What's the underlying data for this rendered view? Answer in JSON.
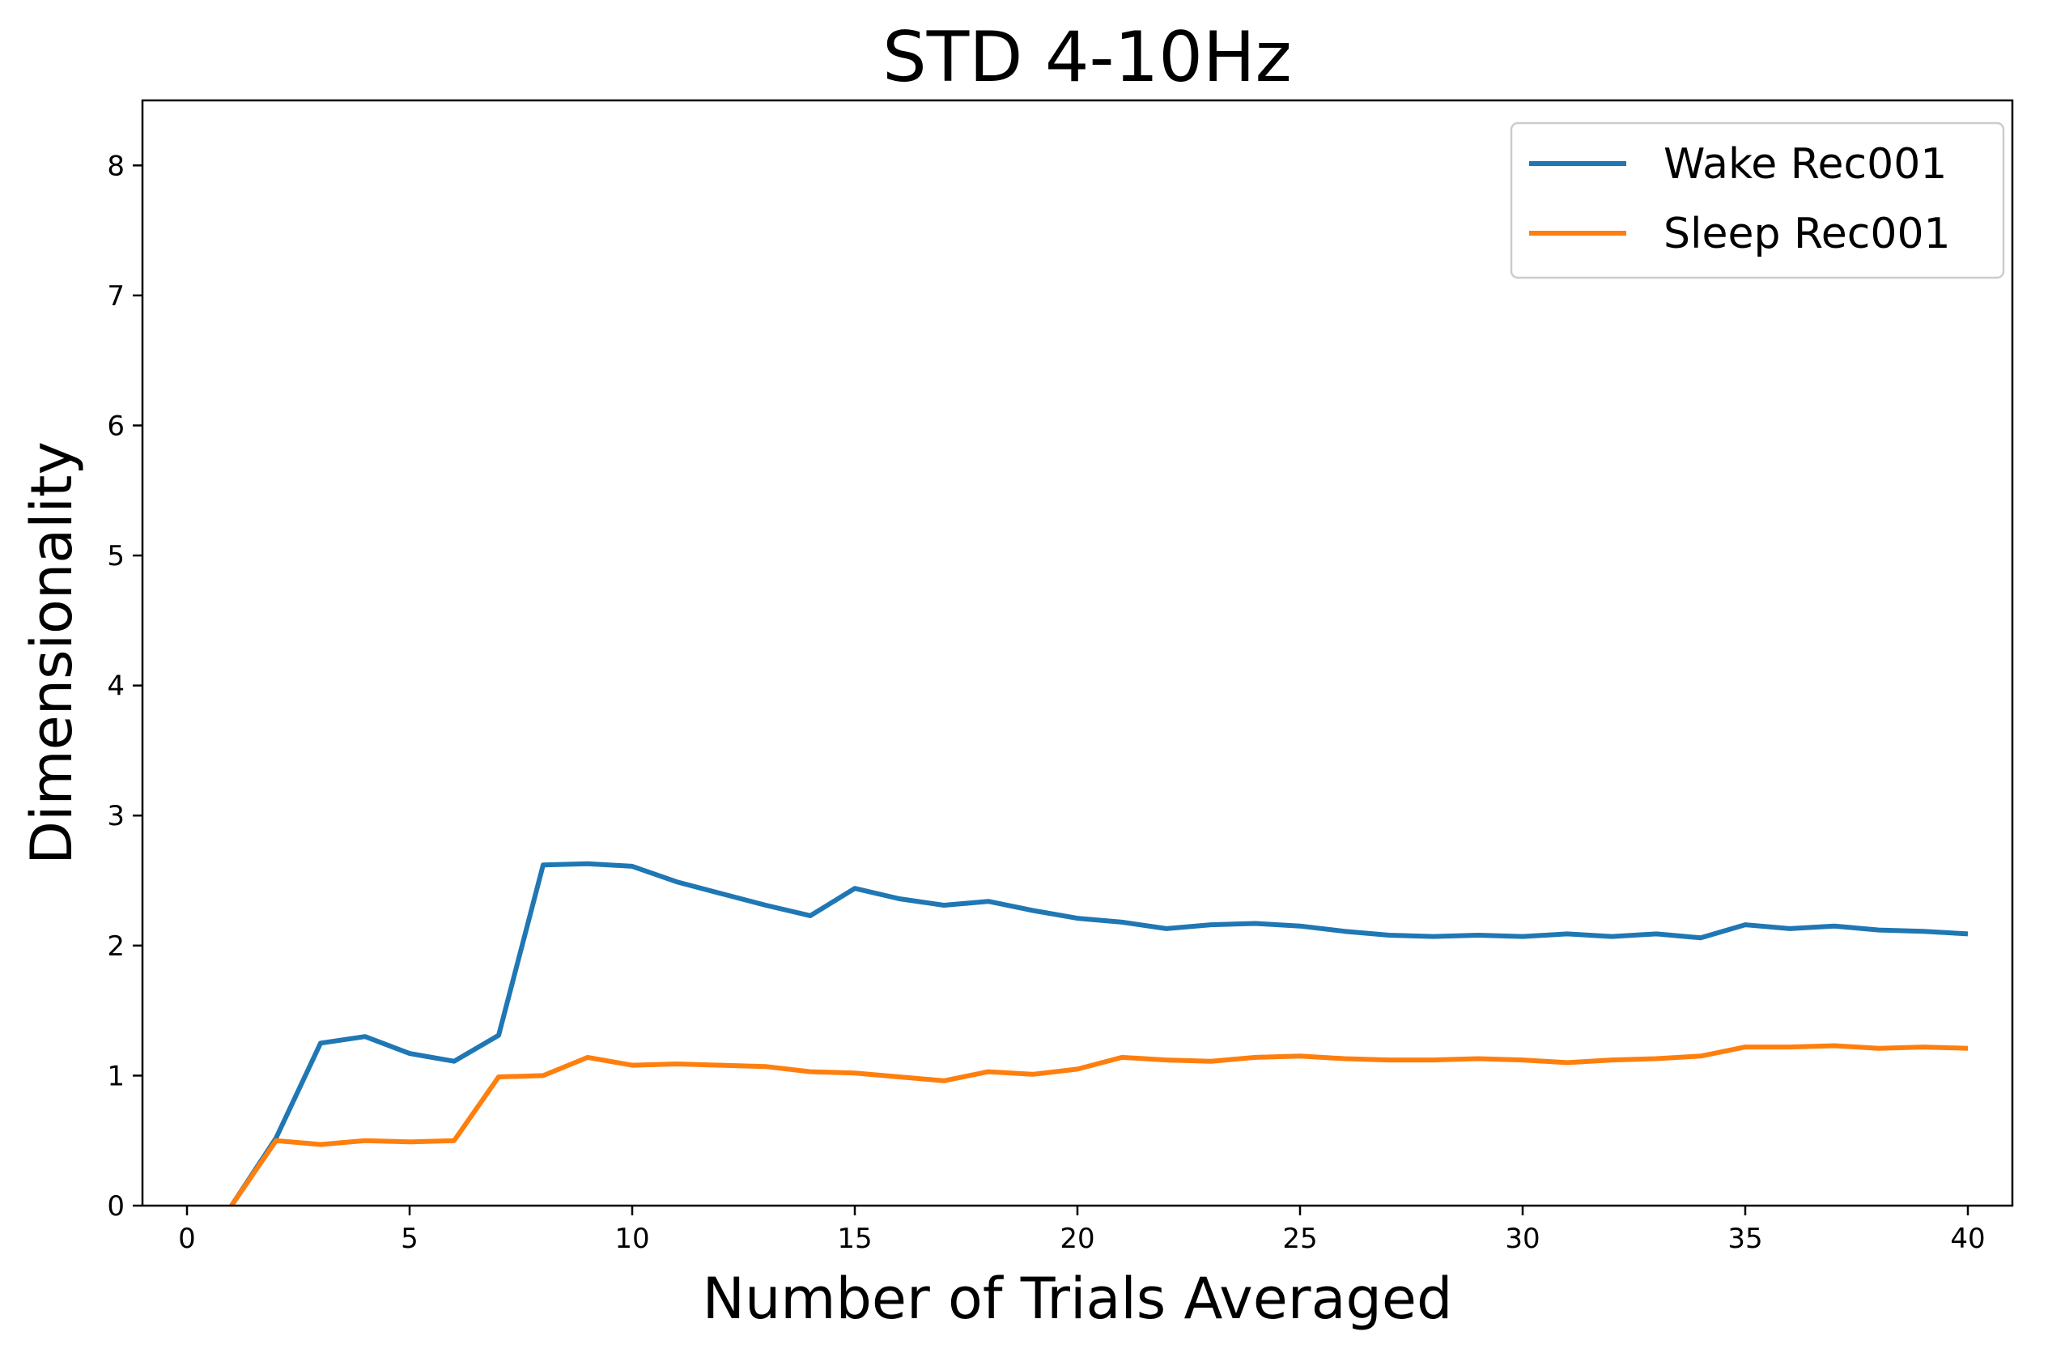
{
  "chart_data": {
    "type": "line",
    "title": "STD 4-10Hz",
    "xlabel": "Number of Trials Averaged",
    "ylabel": "Dimensionality",
    "xlim": [
      -1,
      41
    ],
    "ylim": [
      0,
      8.5
    ],
    "xticks": [
      0,
      5,
      10,
      15,
      20,
      25,
      30,
      35,
      40
    ],
    "yticks": [
      0,
      1,
      2,
      3,
      4,
      5,
      6,
      7,
      8
    ],
    "grid": false,
    "legend_position": "top-right",
    "x": [
      1,
      2,
      3,
      4,
      5,
      6,
      7,
      8,
      9,
      10,
      11,
      12,
      13,
      14,
      15,
      16,
      17,
      18,
      19,
      20,
      21,
      22,
      23,
      24,
      25,
      26,
      27,
      28,
      29,
      30,
      31,
      32,
      33,
      34,
      35,
      36,
      37,
      38,
      39,
      40
    ],
    "series": [
      {
        "name": "Wake Rec001",
        "color": "#1f77b4",
        "values": [
          0,
          0.52,
          1.25,
          1.3,
          1.17,
          1.11,
          1.31,
          2.62,
          2.63,
          2.61,
          2.49,
          2.4,
          2.31,
          2.23,
          2.44,
          2.36,
          2.31,
          2.34,
          2.27,
          2.21,
          2.18,
          2.13,
          2.16,
          2.17,
          2.15,
          2.11,
          2.08,
          2.07,
          2.08,
          2.07,
          2.09,
          2.07,
          2.09,
          2.06,
          2.16,
          2.13,
          2.15,
          2.12,
          2.11,
          2.09
        ]
      },
      {
        "name": "Sleep Rec001",
        "color": "#ff7f0e",
        "values": [
          0,
          0.5,
          0.47,
          0.5,
          0.49,
          0.5,
          0.99,
          1.0,
          1.14,
          1.08,
          1.09,
          1.08,
          1.07,
          1.03,
          1.02,
          0.99,
          0.96,
          1.03,
          1.01,
          1.05,
          1.14,
          1.12,
          1.11,
          1.14,
          1.15,
          1.13,
          1.12,
          1.12,
          1.13,
          1.12,
          1.1,
          1.12,
          1.13,
          1.15,
          1.22,
          1.22,
          1.23,
          1.21,
          1.22,
          1.21
        ]
      }
    ]
  }
}
